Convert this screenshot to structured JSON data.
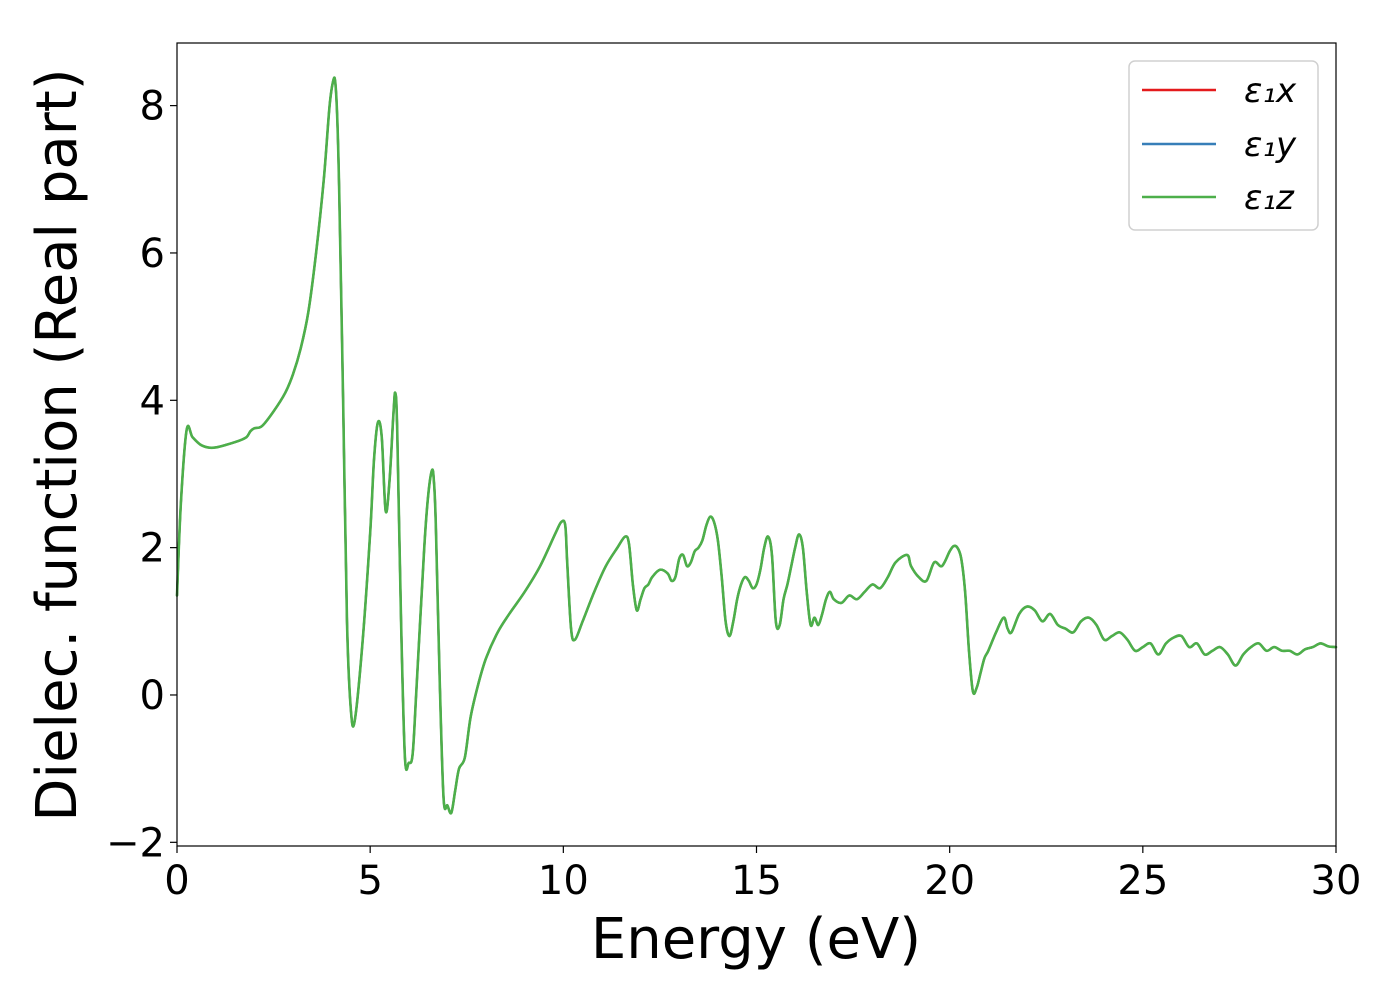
{
  "chart_data": {
    "type": "line",
    "title": "",
    "xlabel": "Energy (eV)",
    "ylabel": "Dielec. function (Real part)",
    "xlim": [
      0,
      30
    ],
    "ylim": [
      -2.05,
      8.85
    ],
    "xticks": [
      0,
      5,
      10,
      15,
      20,
      25,
      30
    ],
    "xtick_labels": [
      "0",
      "5",
      "10",
      "15",
      "20",
      "25",
      "30"
    ],
    "yticks": [
      -2,
      0,
      2,
      4,
      6,
      8
    ],
    "ytick_labels": [
      "−2",
      "0",
      "2",
      "4",
      "6",
      "8"
    ],
    "grid": false,
    "legend_position": "top-right",
    "x": [
      0.0,
      0.1,
      0.25,
      0.4,
      0.6,
      0.8,
      1.0,
      1.3,
      1.6,
      1.8,
      1.9,
      2.0,
      2.2,
      2.5,
      2.8,
      3.0,
      3.2,
      3.4,
      3.6,
      3.8,
      3.95,
      4.05,
      4.1,
      4.15,
      4.2,
      4.3,
      4.4,
      4.5,
      4.6,
      4.8,
      5.0,
      5.1,
      5.2,
      5.3,
      5.4,
      5.5,
      5.6,
      5.65,
      5.7,
      5.8,
      5.9,
      6.0,
      6.1,
      6.2,
      6.4,
      6.5,
      6.6,
      6.65,
      6.7,
      6.8,
      6.9,
      7.0,
      7.1,
      7.2,
      7.3,
      7.45,
      7.6,
      7.8,
      8.0,
      8.3,
      8.6,
      9.0,
      9.4,
      9.8,
      9.95,
      10.05,
      10.1,
      10.2,
      10.3,
      10.5,
      10.8,
      11.1,
      11.4,
      11.6,
      11.7,
      11.8,
      11.9,
      12.0,
      12.1,
      12.2,
      12.3,
      12.5,
      12.7,
      12.8,
      12.9,
      13.0,
      13.1,
      13.2,
      13.3,
      13.4,
      13.5,
      13.6,
      13.7,
      13.8,
      13.9,
      14.0,
      14.1,
      14.2,
      14.3,
      14.4,
      14.5,
      14.6,
      14.7,
      14.8,
      14.9,
      15.0,
      15.1,
      15.2,
      15.3,
      15.4,
      15.5,
      15.6,
      15.7,
      15.8,
      15.9,
      16.0,
      16.1,
      16.2,
      16.3,
      16.4,
      16.5,
      16.6,
      16.7,
      16.8,
      16.9,
      17.0,
      17.2,
      17.4,
      17.6,
      17.8,
      18.0,
      18.2,
      18.4,
      18.6,
      18.9,
      19.0,
      19.2,
      19.4,
      19.6,
      19.8,
      20.0,
      20.1,
      20.2,
      20.3,
      20.4,
      20.5,
      20.6,
      20.7,
      20.8,
      20.9,
      21.0,
      21.2,
      21.4,
      21.5,
      21.6,
      21.8,
      22.0,
      22.2,
      22.4,
      22.6,
      22.8,
      23.0,
      23.2,
      23.4,
      23.6,
      23.8,
      24.0,
      24.2,
      24.4,
      24.6,
      24.8,
      25.0,
      25.2,
      25.4,
      25.6,
      25.8,
      26.0,
      26.2,
      26.4,
      26.6,
      26.8,
      27.0,
      27.2,
      27.4,
      27.6,
      27.8,
      28.0,
      28.2,
      28.4,
      28.6,
      28.8,
      29.0,
      29.2,
      29.4,
      29.6,
      29.8,
      30.0
    ],
    "series": [
      {
        "name": "ε₁x",
        "color": "#e41a1c",
        "linewidth": 2.2,
        "same_as": "ε₁z"
      },
      {
        "name": "ε₁y",
        "color": "#377eb8",
        "linewidth": 2.2,
        "same_as": "ε₁z"
      },
      {
        "name": "ε₁z",
        "color": "#4daf4a",
        "linewidth": 2.6,
        "values": [
          1.35,
          2.6,
          3.6,
          3.5,
          3.4,
          3.36,
          3.36,
          3.4,
          3.45,
          3.5,
          3.58,
          3.62,
          3.65,
          3.85,
          4.1,
          4.35,
          4.7,
          5.2,
          6.0,
          7.0,
          8.0,
          8.35,
          8.3,
          7.8,
          6.8,
          4.0,
          1.0,
          -0.2,
          -0.35,
          0.7,
          2.2,
          3.2,
          3.7,
          3.5,
          2.5,
          2.9,
          3.8,
          4.1,
          3.6,
          1.0,
          -0.85,
          -0.92,
          -0.8,
          0.1,
          2.0,
          2.7,
          3.05,
          2.9,
          2.3,
          0.2,
          -1.4,
          -1.5,
          -1.6,
          -1.3,
          -1.0,
          -0.85,
          -0.3,
          0.15,
          0.5,
          0.85,
          1.1,
          1.4,
          1.75,
          2.2,
          2.35,
          2.3,
          1.8,
          0.9,
          0.75,
          1.0,
          1.4,
          1.75,
          2.0,
          2.15,
          2.05,
          1.5,
          1.15,
          1.3,
          1.45,
          1.5,
          1.6,
          1.7,
          1.65,
          1.55,
          1.6,
          1.85,
          1.9,
          1.75,
          1.8,
          1.95,
          2.0,
          2.1,
          2.3,
          2.42,
          2.35,
          2.1,
          1.6,
          1.0,
          0.8,
          1.0,
          1.3,
          1.5,
          1.6,
          1.55,
          1.45,
          1.5,
          1.7,
          2.0,
          2.15,
          1.9,
          1.0,
          0.95,
          1.3,
          1.5,
          1.75,
          2.0,
          2.18,
          2.0,
          1.4,
          0.95,
          1.05,
          0.95,
          1.1,
          1.3,
          1.4,
          1.3,
          1.25,
          1.35,
          1.3,
          1.4,
          1.5,
          1.45,
          1.6,
          1.8,
          1.9,
          1.75,
          1.6,
          1.55,
          1.8,
          1.75,
          1.95,
          2.02,
          2.0,
          1.85,
          1.4,
          0.6,
          0.05,
          0.1,
          0.3,
          0.5,
          0.6,
          0.85,
          1.05,
          0.9,
          0.85,
          1.1,
          1.2,
          1.15,
          1.0,
          1.1,
          0.95,
          0.9,
          0.85,
          1.0,
          1.05,
          0.95,
          0.75,
          0.8,
          0.85,
          0.75,
          0.6,
          0.65,
          0.7,
          0.55,
          0.7,
          0.78,
          0.8,
          0.65,
          0.7,
          0.55,
          0.6,
          0.65,
          0.55,
          0.4,
          0.55,
          0.65,
          0.7,
          0.6,
          0.65,
          0.6,
          0.6,
          0.55,
          0.62,
          0.65,
          0.7,
          0.66,
          0.65
        ]
      }
    ]
  }
}
